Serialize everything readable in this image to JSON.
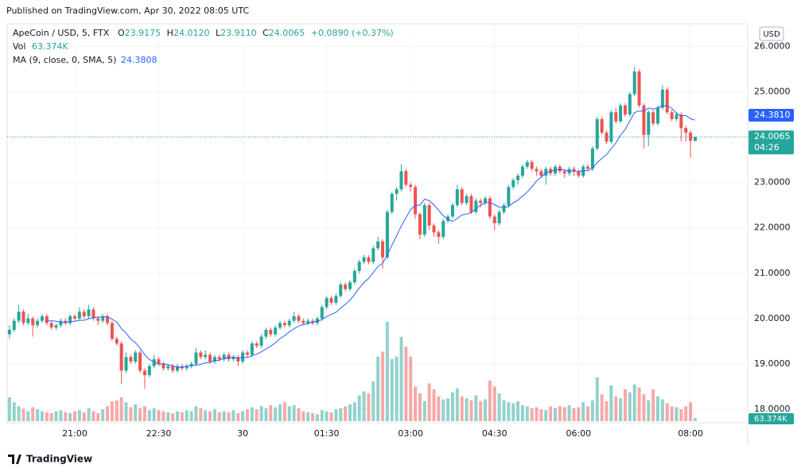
{
  "header": {
    "published": "Published on TradingView.com, Apr 30, 2022 08:05 UTC"
  },
  "footer": {
    "brand": "TradingView"
  },
  "chart_data": {
    "type": "candlestick",
    "legend": {
      "symbol": "ApeCoin / USD, 5, FTX",
      "o_label": "O",
      "open": "23.9175",
      "h_label": "H",
      "high": "24.0120",
      "l_label": "L",
      "low": "23.9110",
      "c_label": "C",
      "close": "24.0065",
      "change": "+0.0890 (+0.37%)",
      "vol_label": "Vol",
      "vol": "63.374K",
      "ma_label": "MA (9, close, 0, SMA, 5)",
      "ma": "24.3808"
    },
    "currency": "USD",
    "axis_labels": {
      "ma_price": "24.3810",
      "last_price": "24.0065",
      "countdown": "04:26",
      "last_volume": "63.374K"
    },
    "up_color": "#26a69a",
    "down_color": "#ef5350",
    "ma_color": "#2962ff",
    "ylim": [
      17.7,
      26.5
    ],
    "yticks": [
      {
        "value": 18,
        "label": "18.0000"
      },
      {
        "value": 19,
        "label": "19.0000"
      },
      {
        "value": 20,
        "label": "20.0000"
      },
      {
        "value": 21,
        "label": "21.0000"
      },
      {
        "value": 22,
        "label": "22.0000"
      },
      {
        "value": 23,
        "label": "23.0000"
      },
      {
        "value": 24,
        "label": "24.0000"
      },
      {
        "value": 25,
        "label": "25.0000"
      },
      {
        "value": 26,
        "label": "26.0000"
      }
    ],
    "xticks": [
      {
        "value": 14,
        "label": "21:00"
      },
      {
        "value": 32,
        "label": "22:30"
      },
      {
        "value": 50,
        "label": "30"
      },
      {
        "value": 68,
        "label": "01:30"
      },
      {
        "value": 86,
        "label": "03:00"
      },
      {
        "value": 104,
        "label": "04:30"
      },
      {
        "value": 122,
        "label": "06:00"
      },
      {
        "value": 146,
        "label": "08:00"
      }
    ],
    "grid": true,
    "ohlc": [
      [
        19.65,
        19.85,
        19.55,
        19.75
      ],
      [
        19.75,
        20.0,
        19.7,
        19.95
      ],
      [
        19.95,
        20.3,
        19.9,
        20.15
      ],
      [
        20.15,
        20.2,
        19.85,
        19.9
      ],
      [
        19.9,
        20.1,
        19.85,
        20.0
      ],
      [
        20.0,
        20.05,
        19.6,
        19.85
      ],
      [
        19.85,
        20.0,
        19.8,
        19.95
      ],
      [
        19.95,
        20.1,
        19.9,
        20.05
      ],
      [
        20.05,
        20.1,
        19.85,
        19.9
      ],
      [
        19.9,
        19.95,
        19.75,
        19.8
      ],
      [
        19.8,
        19.9,
        19.75,
        19.85
      ],
      [
        19.85,
        20.0,
        19.8,
        19.95
      ],
      [
        19.95,
        20.0,
        19.85,
        19.9
      ],
      [
        19.9,
        20.1,
        19.85,
        20.05
      ],
      [
        20.05,
        20.1,
        19.95,
        20.0
      ],
      [
        20.0,
        20.25,
        19.95,
        20.15
      ],
      [
        20.15,
        20.2,
        20.0,
        20.05
      ],
      [
        20.05,
        20.3,
        20.0,
        20.2
      ],
      [
        20.2,
        20.25,
        19.95,
        20.0
      ],
      [
        20.0,
        20.05,
        19.85,
        19.95
      ],
      [
        19.95,
        20.1,
        19.9,
        20.05
      ],
      [
        20.05,
        20.1,
        19.85,
        19.9
      ],
      [
        19.9,
        19.95,
        19.5,
        19.55
      ],
      [
        19.55,
        19.6,
        19.4,
        19.45
      ],
      [
        19.45,
        19.5,
        18.55,
        18.85
      ],
      [
        18.85,
        19.25,
        18.8,
        19.15
      ],
      [
        19.15,
        19.2,
        19.0,
        19.05
      ],
      [
        19.05,
        19.3,
        19.0,
        19.25
      ],
      [
        19.25,
        19.3,
        18.8,
        18.85
      ],
      [
        18.85,
        18.9,
        18.45,
        18.75
      ],
      [
        18.75,
        19.0,
        18.7,
        18.95
      ],
      [
        18.95,
        19.2,
        18.9,
        19.1
      ],
      [
        19.1,
        19.15,
        18.95,
        19.0
      ],
      [
        19.0,
        19.05,
        18.85,
        18.9
      ],
      [
        18.9,
        19.0,
        18.85,
        18.95
      ],
      [
        18.95,
        19.0,
        18.8,
        18.85
      ],
      [
        18.85,
        19.0,
        18.8,
        18.95
      ],
      [
        18.95,
        19.0,
        18.85,
        18.9
      ],
      [
        18.9,
        19.0,
        18.85,
        18.95
      ],
      [
        18.95,
        19.05,
        18.9,
        19.0
      ],
      [
        19.0,
        19.35,
        18.95,
        19.25
      ],
      [
        19.25,
        19.3,
        19.1,
        19.15
      ],
      [
        19.15,
        19.3,
        19.1,
        19.2
      ],
      [
        19.2,
        19.25,
        19.0,
        19.05
      ],
      [
        19.05,
        19.2,
        19.0,
        19.15
      ],
      [
        19.15,
        19.2,
        19.05,
        19.1
      ],
      [
        19.1,
        19.25,
        19.05,
        19.2
      ],
      [
        19.2,
        19.25,
        19.05,
        19.1
      ],
      [
        19.1,
        19.2,
        19.05,
        19.15
      ],
      [
        19.15,
        19.2,
        18.95,
        19.05
      ],
      [
        19.05,
        19.3,
        19.0,
        19.25
      ],
      [
        19.25,
        19.3,
        19.15,
        19.2
      ],
      [
        19.2,
        19.5,
        19.15,
        19.45
      ],
      [
        19.45,
        19.5,
        19.35,
        19.4
      ],
      [
        19.4,
        19.65,
        19.35,
        19.6
      ],
      [
        19.6,
        19.8,
        19.55,
        19.75
      ],
      [
        19.75,
        19.8,
        19.6,
        19.65
      ],
      [
        19.65,
        19.85,
        19.6,
        19.8
      ],
      [
        19.8,
        19.95,
        19.75,
        19.9
      ],
      [
        19.9,
        19.95,
        19.8,
        19.85
      ],
      [
        19.85,
        20.0,
        19.8,
        19.95
      ],
      [
        19.95,
        20.15,
        19.9,
        20.05
      ],
      [
        20.05,
        20.1,
        19.9,
        19.95
      ],
      [
        19.95,
        20.0,
        19.85,
        19.9
      ],
      [
        19.9,
        20.0,
        19.85,
        19.95
      ],
      [
        19.95,
        20.0,
        19.85,
        19.9
      ],
      [
        19.9,
        20.05,
        19.85,
        20.0
      ],
      [
        20.0,
        20.3,
        19.95,
        20.25
      ],
      [
        20.25,
        20.5,
        20.2,
        20.45
      ],
      [
        20.45,
        20.5,
        20.3,
        20.35
      ],
      [
        20.35,
        20.55,
        20.3,
        20.5
      ],
      [
        20.5,
        20.8,
        20.45,
        20.75
      ],
      [
        20.75,
        20.8,
        20.6,
        20.65
      ],
      [
        20.65,
        20.85,
        20.6,
        20.8
      ],
      [
        20.8,
        21.1,
        20.75,
        21.05
      ],
      [
        21.05,
        21.3,
        21.0,
        21.25
      ],
      [
        21.25,
        21.4,
        21.2,
        21.35
      ],
      [
        21.35,
        21.4,
        21.2,
        21.25
      ],
      [
        21.25,
        21.6,
        21.2,
        21.55
      ],
      [
        21.55,
        21.8,
        21.5,
        21.7
      ],
      [
        21.7,
        21.75,
        21.1,
        21.35
      ],
      [
        21.35,
        22.4,
        21.3,
        22.35
      ],
      [
        22.35,
        22.8,
        22.3,
        22.75
      ],
      [
        22.75,
        22.9,
        22.6,
        22.85
      ],
      [
        22.85,
        23.4,
        22.8,
        23.25
      ],
      [
        23.25,
        23.3,
        22.9,
        22.95
      ],
      [
        22.95,
        23.0,
        22.8,
        22.9
      ],
      [
        22.9,
        22.95,
        22.2,
        22.3
      ],
      [
        22.3,
        22.35,
        21.75,
        21.85
      ],
      [
        21.85,
        22.55,
        21.8,
        22.5
      ],
      [
        22.5,
        22.55,
        21.95,
        22.05
      ],
      [
        22.05,
        22.1,
        21.8,
        21.9
      ],
      [
        21.9,
        21.95,
        21.65,
        21.8
      ],
      [
        21.8,
        22.2,
        21.75,
        22.15
      ],
      [
        22.15,
        22.3,
        22.1,
        22.25
      ],
      [
        22.25,
        22.55,
        22.2,
        22.5
      ],
      [
        22.5,
        22.95,
        22.45,
        22.85
      ],
      [
        22.85,
        22.9,
        22.5,
        22.55
      ],
      [
        22.55,
        22.75,
        22.5,
        22.7
      ],
      [
        22.7,
        22.75,
        22.3,
        22.35
      ],
      [
        22.35,
        22.65,
        22.3,
        22.6
      ],
      [
        22.6,
        22.65,
        22.45,
        22.55
      ],
      [
        22.55,
        22.7,
        22.5,
        22.65
      ],
      [
        22.65,
        22.7,
        22.2,
        22.25
      ],
      [
        22.25,
        22.3,
        21.95,
        22.1
      ],
      [
        22.1,
        22.4,
        22.05,
        22.35
      ],
      [
        22.35,
        22.55,
        22.3,
        22.5
      ],
      [
        22.5,
        22.95,
        22.45,
        22.9
      ],
      [
        22.9,
        23.1,
        22.85,
        23.05
      ],
      [
        23.05,
        23.2,
        22.95,
        23.15
      ],
      [
        23.15,
        23.4,
        23.1,
        23.35
      ],
      [
        23.35,
        23.5,
        23.3,
        23.45
      ],
      [
        23.45,
        23.5,
        23.25,
        23.3
      ],
      [
        23.3,
        23.35,
        23.15,
        23.25
      ],
      [
        23.25,
        23.3,
        23.1,
        23.15
      ],
      [
        23.15,
        23.35,
        22.95,
        23.3
      ],
      [
        23.3,
        23.35,
        23.15,
        23.2
      ],
      [
        23.2,
        23.4,
        23.15,
        23.35
      ],
      [
        23.35,
        23.4,
        23.2,
        23.25
      ],
      [
        23.25,
        23.3,
        23.1,
        23.2
      ],
      [
        23.2,
        23.35,
        23.15,
        23.3
      ],
      [
        23.3,
        23.35,
        23.15,
        23.25
      ],
      [
        23.25,
        23.3,
        23.1,
        23.15
      ],
      [
        23.15,
        23.4,
        23.1,
        23.35
      ],
      [
        23.35,
        23.4,
        23.25,
        23.3
      ],
      [
        23.3,
        23.8,
        23.25,
        23.75
      ],
      [
        23.75,
        24.45,
        23.7,
        24.4
      ],
      [
        24.4,
        24.45,
        24.05,
        24.1
      ],
      [
        24.1,
        24.15,
        23.85,
        23.9
      ],
      [
        23.9,
        24.6,
        23.85,
        24.55
      ],
      [
        24.55,
        24.65,
        24.3,
        24.35
      ],
      [
        24.35,
        24.75,
        24.3,
        24.7
      ],
      [
        24.7,
        24.75,
        24.45,
        24.5
      ],
      [
        24.5,
        25.0,
        24.45,
        24.95
      ],
      [
        24.95,
        25.55,
        24.9,
        25.45
      ],
      [
        25.45,
        25.5,
        24.65,
        24.7
      ],
      [
        24.7,
        24.75,
        23.75,
        24.05
      ],
      [
        24.05,
        24.6,
        23.8,
        24.55
      ],
      [
        24.55,
        24.6,
        24.25,
        24.3
      ],
      [
        24.3,
        24.7,
        24.25,
        24.65
      ],
      [
        24.65,
        25.15,
        24.6,
        25.05
      ],
      [
        25.05,
        25.1,
        24.5,
        24.55
      ],
      [
        24.55,
        24.6,
        24.35,
        24.4
      ],
      [
        24.4,
        24.55,
        24.35,
        24.5
      ],
      [
        24.5,
        24.55,
        23.9,
        24.2
      ],
      [
        24.2,
        24.25,
        23.9,
        24.1
      ],
      [
        24.1,
        24.15,
        23.55,
        23.92
      ],
      [
        23.9175,
        24.012,
        23.911,
        24.0065
      ]
    ],
    "volume": [
      480,
      380,
      300,
      250,
      200,
      280,
      240,
      200,
      180,
      160,
      200,
      220,
      180,
      160,
      200,
      220,
      180,
      260,
      200,
      160,
      240,
      300,
      400,
      420,
      480,
      380,
      280,
      340,
      260,
      300,
      220,
      260,
      220,
      200,
      180,
      160,
      200,
      180,
      220,
      200,
      300,
      260,
      220,
      200,
      240,
      180,
      200,
      180,
      220,
      160,
      200,
      240,
      280,
      240,
      300,
      260,
      320,
      280,
      340,
      380,
      300,
      320,
      260,
      200,
      180,
      160,
      140,
      220,
      200,
      180,
      240,
      260,
      300,
      340,
      380,
      520,
      600,
      560,
      800,
      1300,
      1400,
      2000,
      1250,
      1300,
      1700,
      1500,
      1300,
      700,
      560,
      400,
      760,
      640,
      500,
      440,
      460,
      580,
      660,
      500,
      460,
      420,
      520,
      400,
      440,
      820,
      700,
      560,
      420,
      380,
      360,
      400,
      320,
      300,
      260,
      280,
      240,
      220,
      300,
      260,
      300,
      280,
      320,
      260,
      280,
      380,
      300,
      420,
      880,
      540,
      400,
      720,
      500,
      460,
      640,
      580,
      740,
      680,
      540,
      420,
      640,
      500,
      440,
      360,
      300,
      280,
      240,
      300,
      380,
      63.374
    ],
    "volume_max": 2000
  }
}
